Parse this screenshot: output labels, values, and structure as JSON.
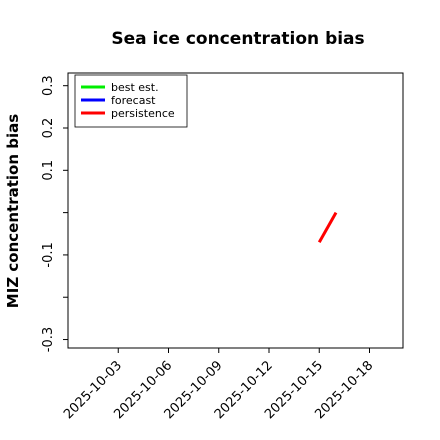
{
  "chart_data": {
    "type": "line",
    "title": "Sea ice concentration bias",
    "y_label": "MIZ concentration bias",
    "x": [
      "2025-10-15",
      "2025-10-16"
    ],
    "series": [
      {
        "name": "best est.",
        "color": "#00ee00",
        "values": [
          null,
          null
        ]
      },
      {
        "name": "forecast",
        "color": "#0000ff",
        "values": [
          null,
          null
        ]
      },
      {
        "name": "persistence",
        "color": "#ff0000",
        "values": [
          -0.07,
          0
        ]
      }
    ],
    "xlim": [
      "2025-09-30",
      "2025-10-20"
    ],
    "xticks": [
      "2025-10-03",
      "2025-10-06",
      "2025-10-09",
      "2025-10-12",
      "2025-10-15",
      "2025-10-18"
    ],
    "highlight_xtick": "2025-10-09",
    "highlight_color": "#228b22",
    "ylim": [
      -0.32,
      0.33
    ],
    "yticks": [
      -0.3,
      {
        "value": -0.2,
        "label": null
      },
      -0.1,
      {
        "value": 0,
        "label": null
      },
      0.1,
      0.2,
      0.3
    ],
    "legend": "upper left"
  }
}
